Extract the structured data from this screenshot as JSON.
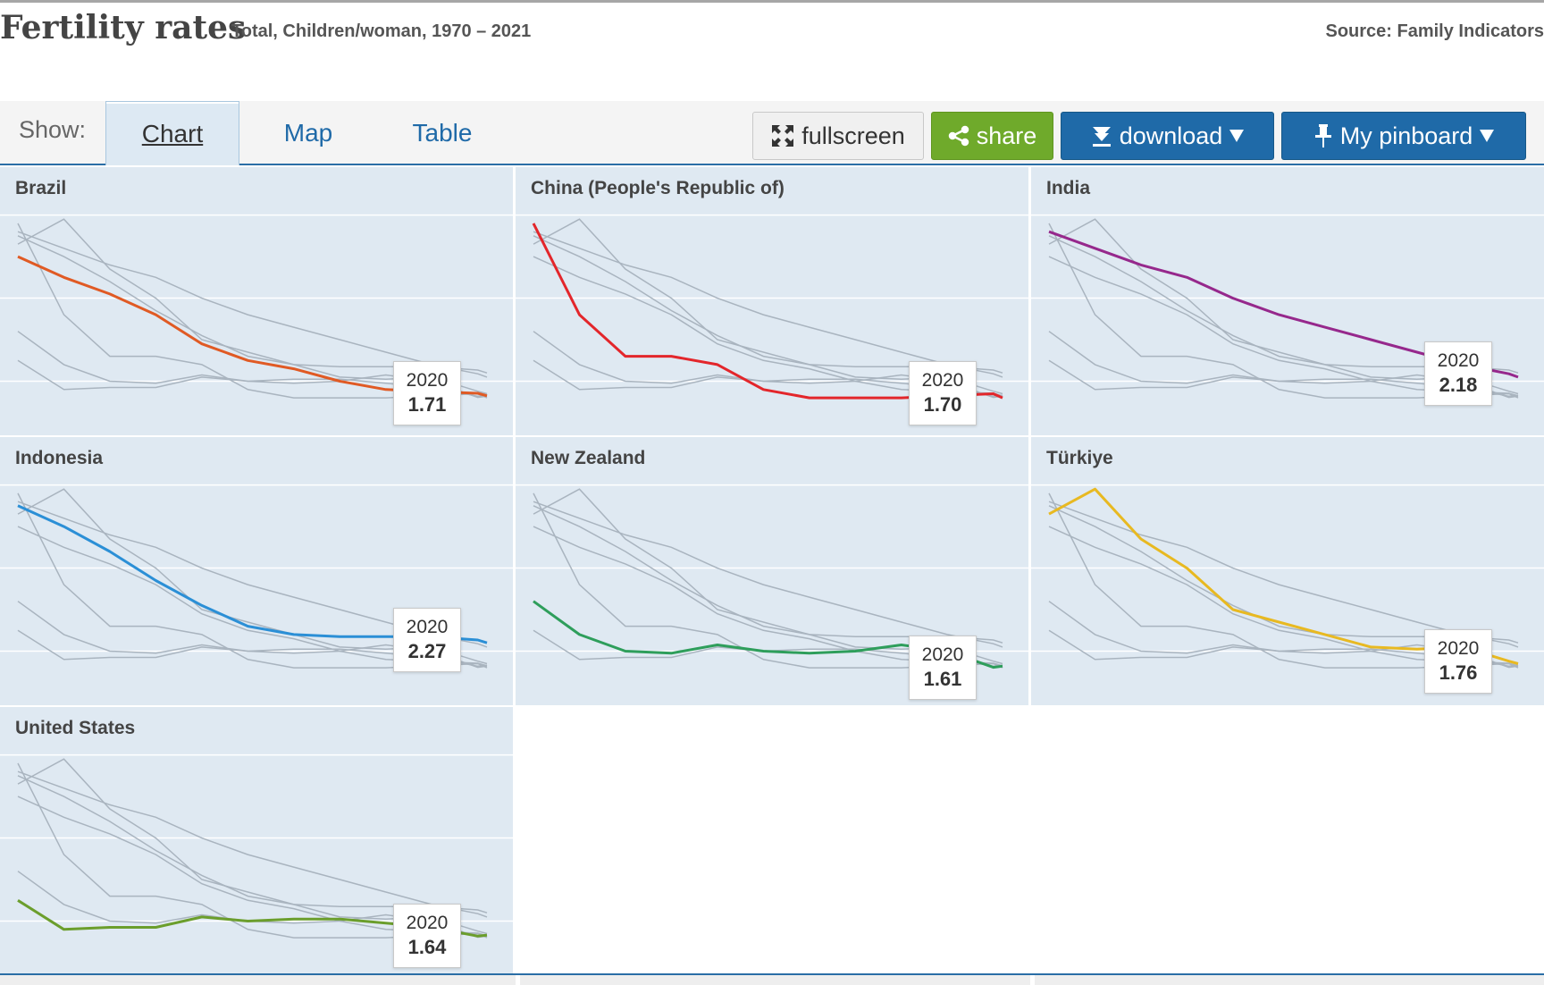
{
  "header": {
    "title": "Fertility rates",
    "subtitle": "Total, Children/woman, 1970 – 2021",
    "source": "Source: Family Indicators"
  },
  "toolbar": {
    "show_label": "Show:",
    "tabs": [
      {
        "label": "Chart",
        "active": true
      },
      {
        "label": "Map",
        "active": false
      },
      {
        "label": "Table",
        "active": false
      }
    ],
    "fullscreen_label": "fullscreen",
    "share_label": "share",
    "download_label": "download",
    "pinboard_label": "My pinboard",
    "icons": {
      "fullscreen": "expand-icon",
      "share": "share-icon",
      "download": "download-icon",
      "pinboard": "pin-icon",
      "dropdown": "caret-down-icon"
    }
  },
  "colors": {
    "panel_bg": "#dfe9f2",
    "gridline": "#ffffff",
    "context_line": "#a9b4bf",
    "tab_link": "#1f6aa8",
    "share_button": "#6faa2b",
    "download_button": "#1f6aa8"
  },
  "chart_data": {
    "type": "line",
    "layout": "small-multiples",
    "title": "Fertility rates",
    "subtitle": "Total, Children/woman, 1970 – 2021",
    "xlim": [
      1970,
      2021
    ],
    "ylim": [
      1.0,
      6.4
    ],
    "grid": true,
    "x": [
      1970,
      1975,
      1980,
      1985,
      1990,
      1995,
      2000,
      2005,
      2010,
      2015,
      2020,
      2021
    ],
    "highlight_year": "2020",
    "series": [
      {
        "name": "Brazil",
        "color": "#e05a24",
        "label_2020": "1.71",
        "values": [
          5.0,
          4.5,
          4.1,
          3.6,
          2.9,
          2.5,
          2.3,
          2.0,
          1.8,
          1.75,
          1.71,
          1.65
        ]
      },
      {
        "name": "China (People's Republic of)",
        "color": "#e3262b",
        "label_2020": "1.70",
        "values": [
          5.8,
          3.6,
          2.6,
          2.6,
          2.4,
          1.8,
          1.6,
          1.6,
          1.6,
          1.65,
          1.7,
          1.6
        ]
      },
      {
        "name": "India",
        "color": "#96288c",
        "label_2020": "2.18",
        "values": [
          5.6,
          5.2,
          4.8,
          4.5,
          4.0,
          3.6,
          3.3,
          3.0,
          2.7,
          2.4,
          2.18,
          2.1
        ]
      },
      {
        "name": "Indonesia",
        "color": "#2b8fd6",
        "label_2020": "2.27",
        "values": [
          5.5,
          5.0,
          4.4,
          3.7,
          3.1,
          2.6,
          2.4,
          2.35,
          2.35,
          2.35,
          2.27,
          2.2
        ]
      },
      {
        "name": "New Zealand",
        "color": "#2e9e5b",
        "label_2020": "1.61",
        "values": [
          3.2,
          2.4,
          2.0,
          1.95,
          2.15,
          2.0,
          1.95,
          2.0,
          2.15,
          2.0,
          1.61,
          1.64
        ]
      },
      {
        "name": "Türkiye",
        "color": "#e8b921",
        "label_2020": "1.76",
        "values": [
          5.3,
          5.9,
          4.7,
          4.0,
          3.0,
          2.7,
          2.4,
          2.1,
          2.05,
          2.1,
          1.76,
          1.7
        ]
      },
      {
        "name": "United States",
        "color": "#6b9e2c",
        "label_2020": "1.64",
        "values": [
          2.5,
          1.8,
          1.85,
          1.85,
          2.1,
          2.0,
          2.05,
          2.05,
          1.95,
          1.85,
          1.64,
          1.66
        ]
      }
    ]
  }
}
